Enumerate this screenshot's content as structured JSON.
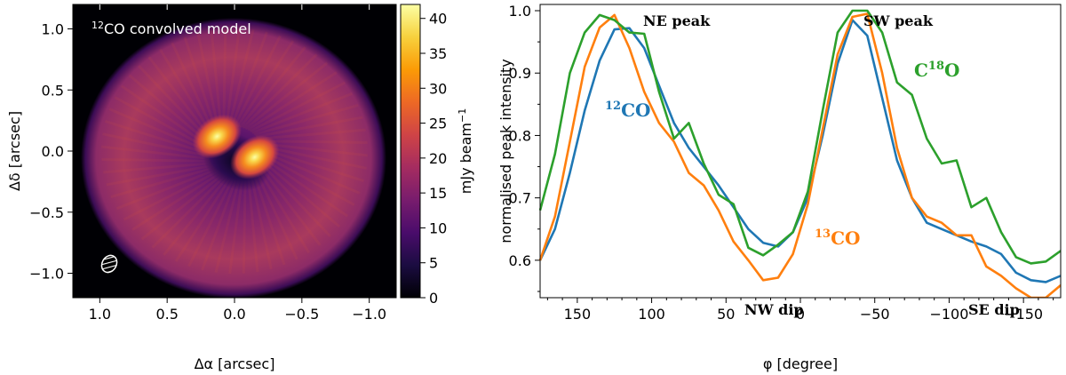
{
  "chart_data": [
    {
      "type": "heatmap",
      "title": "12CO convolved model",
      "title_sup": "12",
      "title_main": "CO convolved model",
      "xlabel": "Δα [arcsec]",
      "ylabel": "Δδ [arcsec]",
      "xlim": [
        1.2,
        -1.2
      ],
      "ylim": [
        -1.2,
        1.2
      ],
      "xticks": [
        "1.0",
        "0.5",
        "0.0",
        "−0.5",
        "−1.0"
      ],
      "xtick_values": [
        1.0,
        0.5,
        0.0,
        -0.5,
        -1.0
      ],
      "yticks": [
        "1.0",
        "0.5",
        "0.0",
        "−0.5",
        "−1.0"
      ],
      "ytick_values": [
        1.0,
        0.5,
        0.0,
        -0.5,
        -1.0
      ],
      "colorbar": {
        "label": "mJy beam−1",
        "label_main": "mJy beam",
        "label_sup": "−1",
        "range": [
          0,
          42
        ],
        "ticks": [
          "0",
          "5",
          "10",
          "15",
          "20",
          "25",
          "30",
          "35",
          "40"
        ],
        "tick_values": [
          0,
          5,
          10,
          15,
          20,
          25,
          30,
          35,
          40
        ],
        "colors": [
          "#000004",
          "#1b0c41",
          "#4a0c6b",
          "#781c6d",
          "#a52c60",
          "#cf4446",
          "#ed6925",
          "#fb9b06",
          "#f7d13d",
          "#fcffa4"
        ]
      },
      "peaks": [
        {
          "x": 0.13,
          "y": 0.12,
          "value": 41
        },
        {
          "x": -0.15,
          "y": -0.05,
          "value": 41
        }
      ],
      "beam_position": "bottom-left"
    },
    {
      "type": "line",
      "xlabel": "φ [degree]",
      "ylabel": "normalised peak intensity",
      "xlim": [
        175,
        -175
      ],
      "ylim": [
        0.54,
        1.01
      ],
      "xticks": [
        "150",
        "100",
        "50",
        "0",
        "−50",
        "−100",
        "−150"
      ],
      "xtick_values": [
        150,
        100,
        50,
        0,
        -50,
        -100,
        -150
      ],
      "yticks": [
        "0.6",
        "0.7",
        "0.8",
        "0.9",
        "1.0"
      ],
      "ytick_values": [
        0.6,
        0.7,
        0.8,
        0.9,
        1.0
      ],
      "series": [
        {
          "name": "12CO",
          "label_sup": "12",
          "label_main": "CO",
          "color": "#1f77b4",
          "x": [
            175,
            165,
            155,
            145,
            135,
            125,
            115,
            105,
            95,
            85,
            75,
            65,
            55,
            45,
            35,
            25,
            15,
            5,
            -5,
            -15,
            -25,
            -35,
            -45,
            -55,
            -65,
            -75,
            -85,
            -95,
            -105,
            -115,
            -125,
            -135,
            -145,
            -155,
            -165,
            -175
          ],
          "y": [
            0.6,
            0.65,
            0.74,
            0.84,
            0.92,
            0.97,
            0.972,
            0.94,
            0.88,
            0.82,
            0.78,
            0.75,
            0.72,
            0.685,
            0.65,
            0.628,
            0.622,
            0.645,
            0.7,
            0.8,
            0.915,
            0.985,
            0.96,
            0.86,
            0.76,
            0.7,
            0.66,
            0.65,
            0.64,
            0.63,
            0.622,
            0.61,
            0.58,
            0.568,
            0.565,
            0.575
          ]
        },
        {
          "name": "13CO",
          "label_sup": "13",
          "label_main": "CO",
          "color": "#ff7f0e",
          "x": [
            175,
            165,
            155,
            145,
            135,
            125,
            115,
            105,
            95,
            85,
            75,
            65,
            55,
            45,
            35,
            25,
            15,
            5,
            -5,
            -15,
            -25,
            -35,
            -45,
            -55,
            -65,
            -75,
            -85,
            -95,
            -105,
            -115,
            -125,
            -135,
            -145,
            -155,
            -165,
            -175
          ],
          "y": [
            0.6,
            0.67,
            0.79,
            0.91,
            0.973,
            0.993,
            0.94,
            0.87,
            0.82,
            0.79,
            0.74,
            0.72,
            0.68,
            0.63,
            0.6,
            0.568,
            0.572,
            0.61,
            0.69,
            0.81,
            0.93,
            0.99,
            0.995,
            0.9,
            0.78,
            0.7,
            0.67,
            0.66,
            0.64,
            0.64,
            0.59,
            0.575,
            0.555,
            0.54,
            0.54,
            0.56
          ]
        },
        {
          "name": "C18O",
          "label_main": "C",
          "label_sup": "18",
          "label_tail": "O",
          "color": "#2ca02c",
          "x": [
            175,
            165,
            155,
            145,
            135,
            125,
            115,
            105,
            95,
            85,
            75,
            65,
            55,
            45,
            35,
            25,
            15,
            5,
            -5,
            -15,
            -25,
            -35,
            -45,
            -55,
            -65,
            -75,
            -85,
            -95,
            -105,
            -115,
            -125,
            -135,
            -145,
            -155,
            -165,
            -175
          ],
          "y": [
            0.68,
            0.77,
            0.9,
            0.965,
            0.993,
            0.985,
            0.965,
            0.963,
            0.87,
            0.795,
            0.82,
            0.755,
            0.705,
            0.69,
            0.62,
            0.608,
            0.625,
            0.645,
            0.71,
            0.84,
            0.965,
            1.0,
            1.0,
            0.965,
            0.885,
            0.865,
            0.795,
            0.755,
            0.76,
            0.685,
            0.7,
            0.645,
            0.605,
            0.595,
            0.598,
            0.615
          ]
        }
      ],
      "annotations": [
        "NE peak",
        "SW peak",
        "NW dip",
        "SE dip"
      ]
    }
  ]
}
